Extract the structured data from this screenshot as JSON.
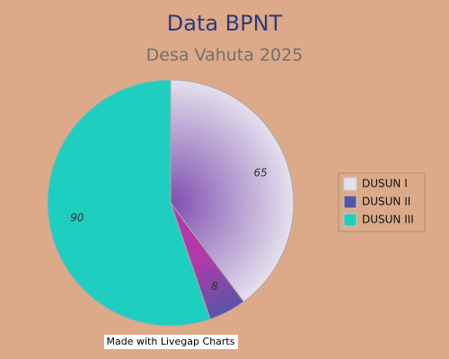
{
  "chart_data": {
    "type": "pie",
    "title": "Data BPNT",
    "subtitle": "Desa Vahuta 2025",
    "categories": [
      "DUSUN I",
      "DUSUN II",
      "DUSUN III"
    ],
    "values": [
      65,
      8,
      90
    ],
    "colors": [
      "#9a6cb8",
      "#a23aa6",
      "#1ecfbf"
    ],
    "legend": "right",
    "watermark": "Made with Livegap Charts"
  }
}
